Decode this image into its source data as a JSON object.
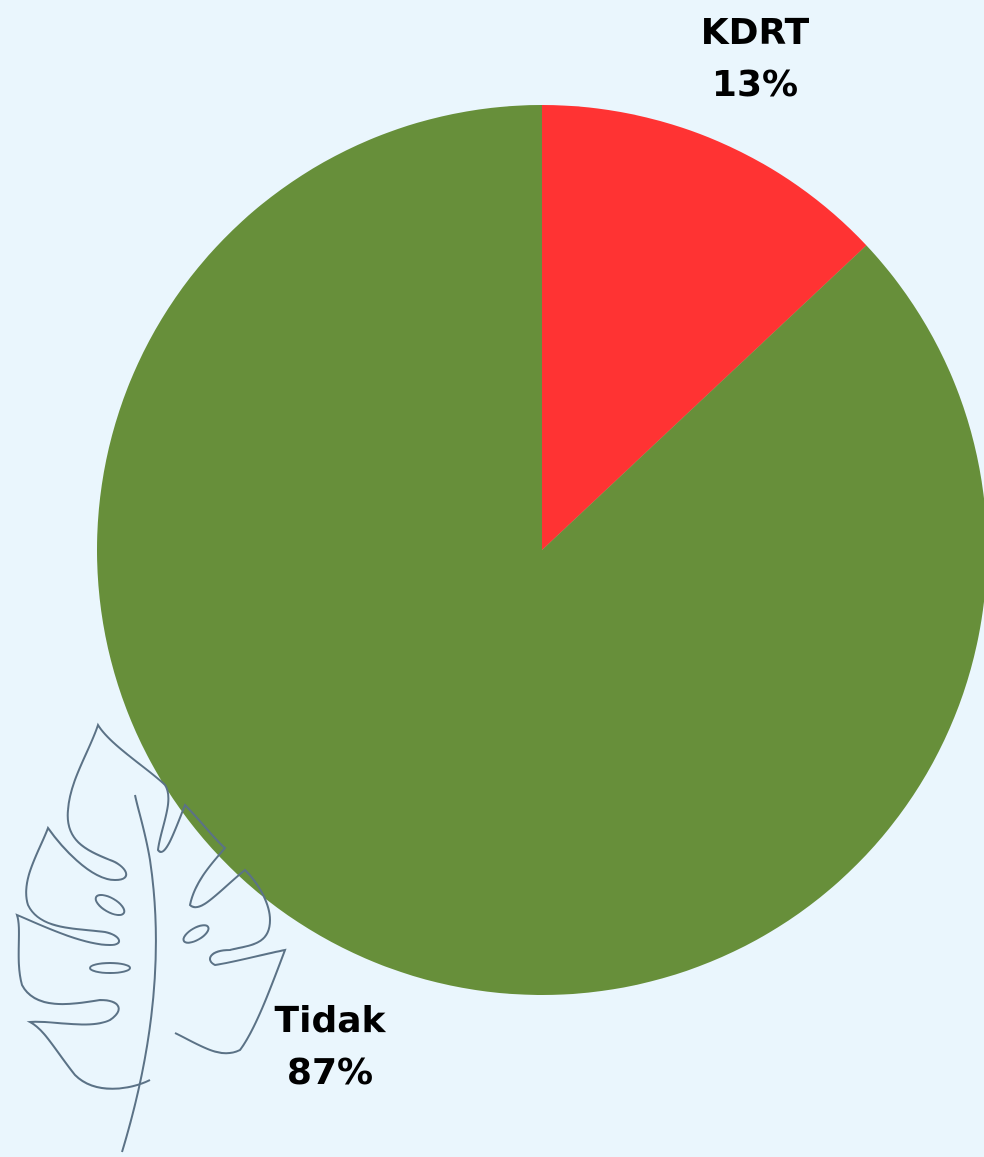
{
  "chart_data": {
    "type": "pie",
    "categories": [
      "KDRT",
      "Tidak"
    ],
    "values": [
      13,
      87
    ],
    "value_labels": [
      "13%",
      "87%"
    ],
    "colors": [
      "#ff3333",
      "#678f3a"
    ]
  }
}
